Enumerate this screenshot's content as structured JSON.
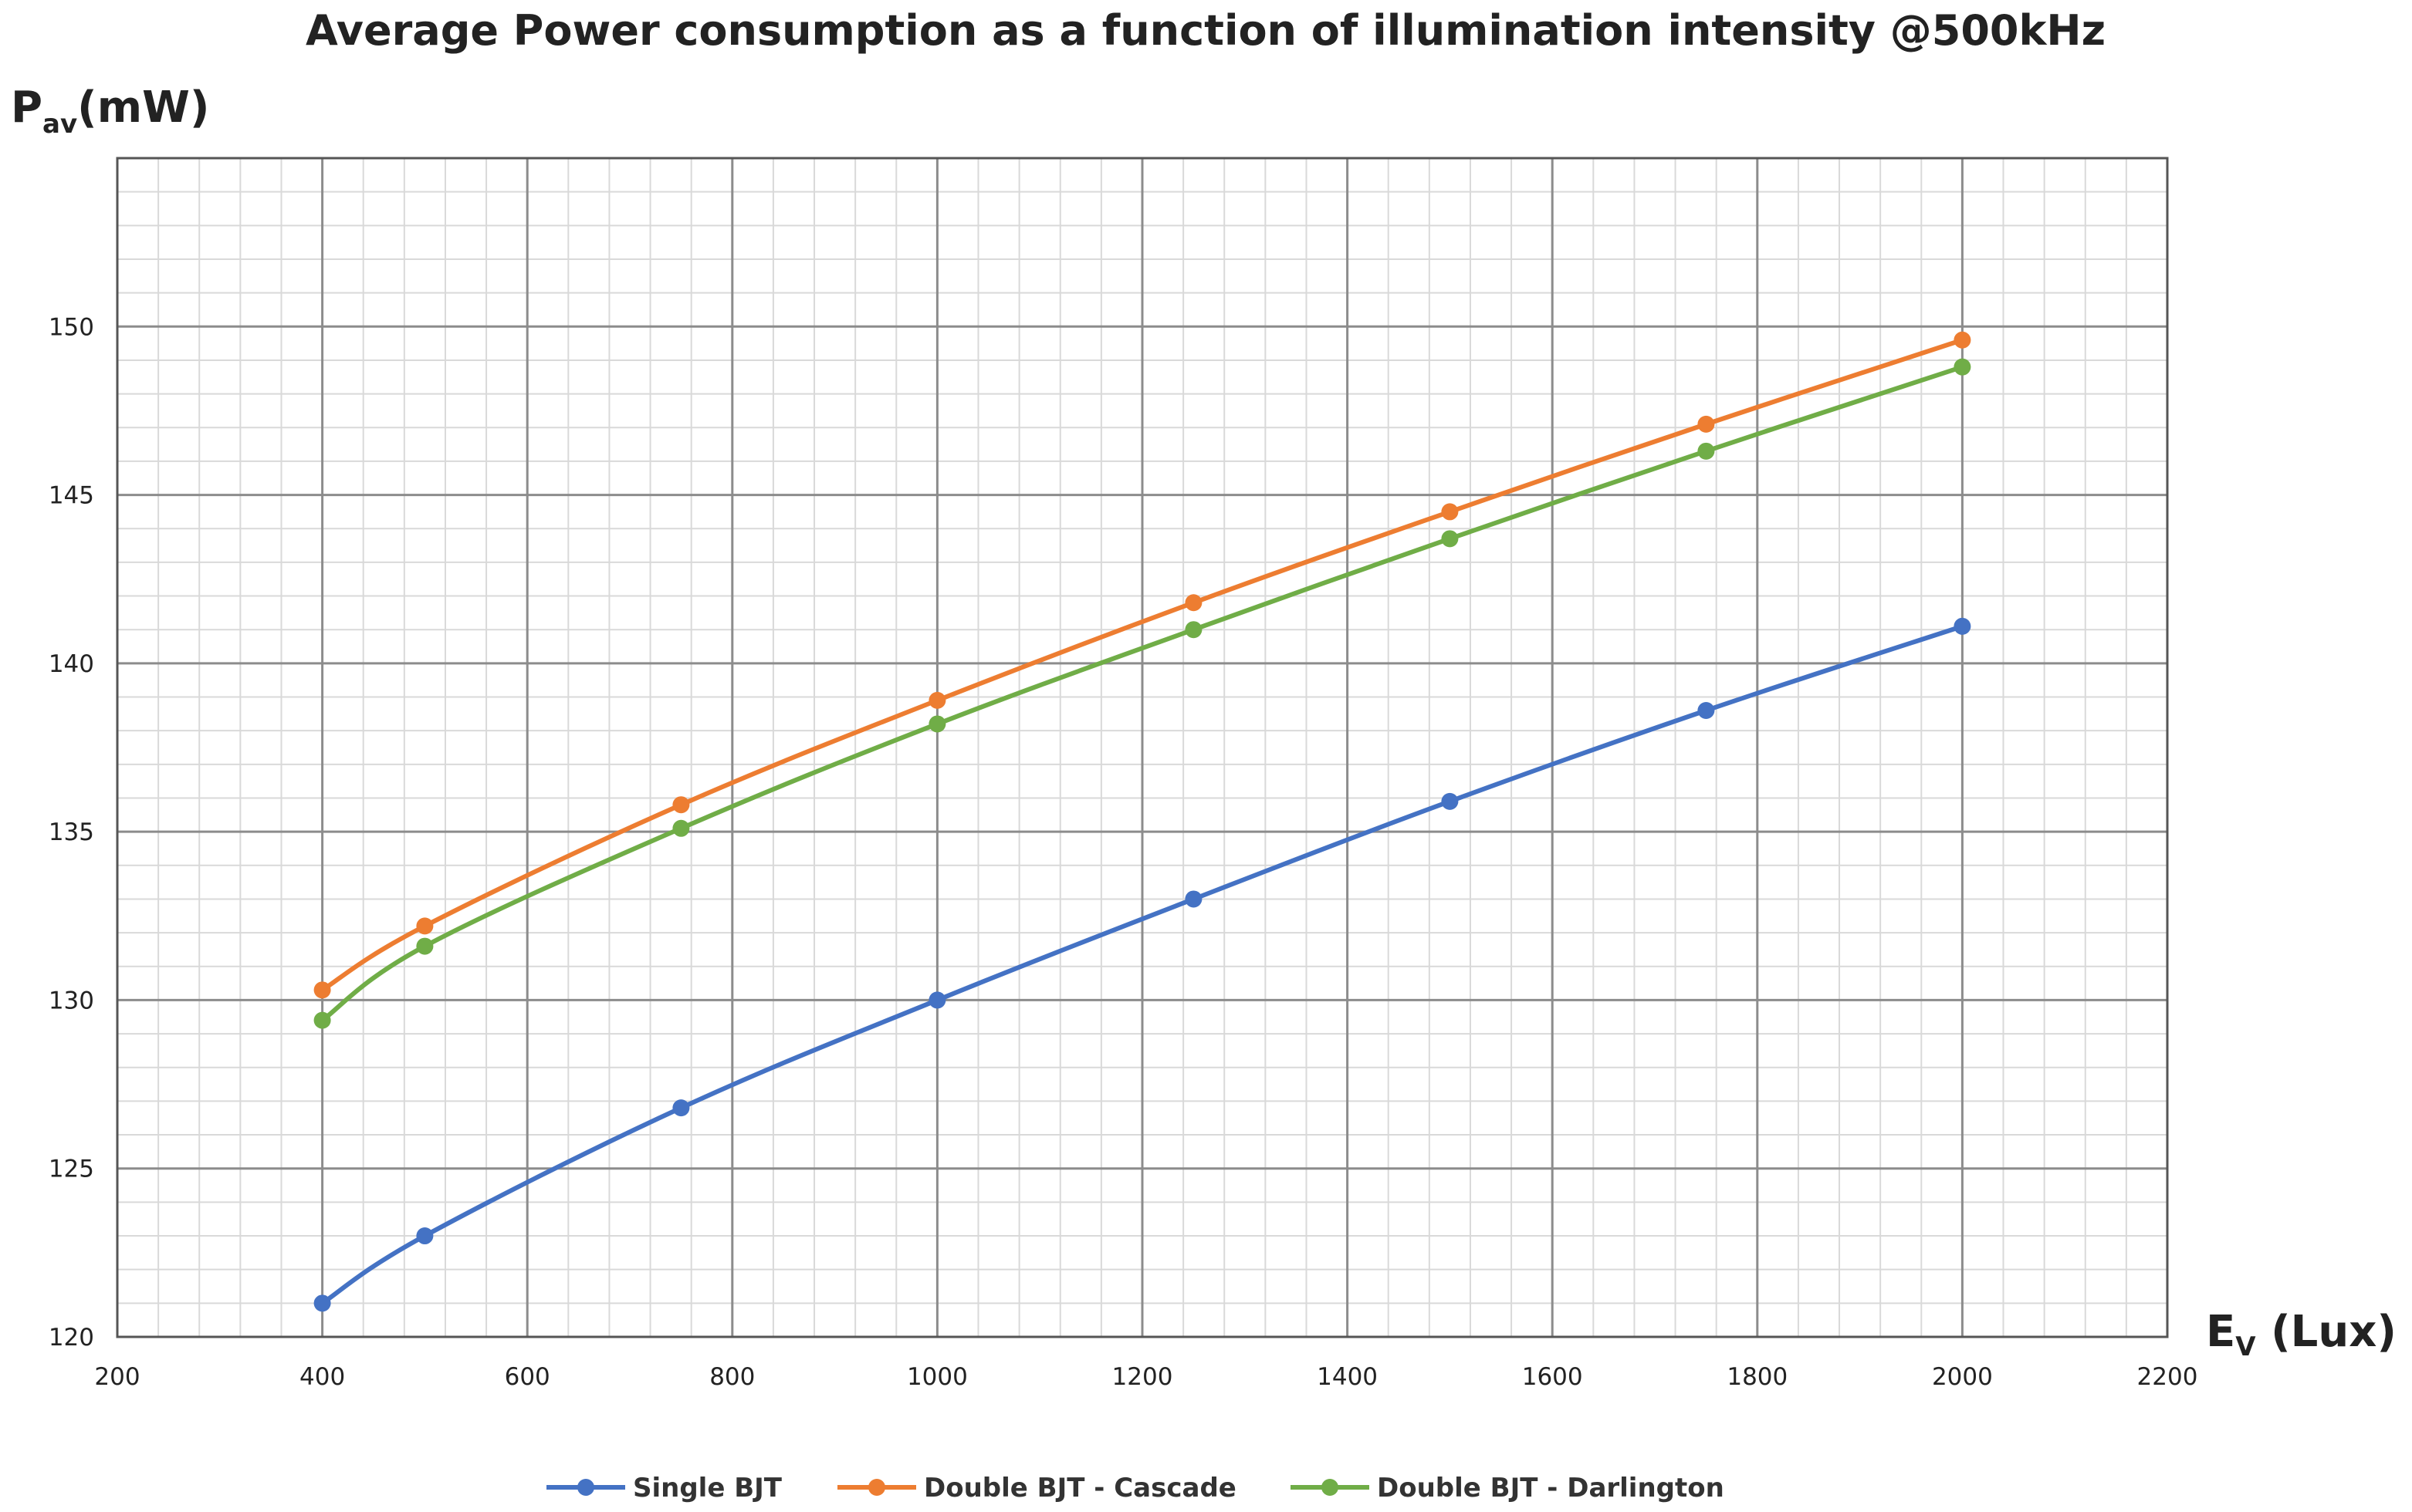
{
  "chart_data": {
    "type": "line",
    "title": "Average Power consumption as a function of illumination intensity @500kHz",
    "ylabel": {
      "main": "P",
      "sub": "av",
      "rest": "(mW)"
    },
    "xlabel": {
      "main": "E",
      "sub": "V",
      "rest": " (Lux)"
    },
    "xlim": [
      200,
      2200
    ],
    "ylim": [
      120,
      155
    ],
    "xticks": [
      200,
      400,
      600,
      800,
      1000,
      1200,
      1400,
      1600,
      1800,
      2000,
      2200
    ],
    "yticks": [
      120,
      125,
      130,
      135,
      140,
      145,
      150
    ],
    "grid": true,
    "minor_grid": true,
    "legend_position": "bottom",
    "x": [
      400,
      500,
      750,
      1000,
      1250,
      1500,
      1750,
      2000
    ],
    "series": [
      {
        "name": "Single BJT",
        "color": "#4472c4",
        "values": [
          121.0,
          123.0,
          126.8,
          130.0,
          133.0,
          135.9,
          138.6,
          141.1
        ]
      },
      {
        "name": "Double BJT - Cascade",
        "color": "#ed7d31",
        "values": [
          130.3,
          132.2,
          135.8,
          138.9,
          141.8,
          144.5,
          147.1,
          149.6
        ]
      },
      {
        "name": "Double BJT - Darlington",
        "color": "#70ad47",
        "values": [
          129.4,
          131.6,
          135.1,
          138.2,
          141.0,
          143.7,
          146.3,
          148.8
        ]
      }
    ]
  }
}
